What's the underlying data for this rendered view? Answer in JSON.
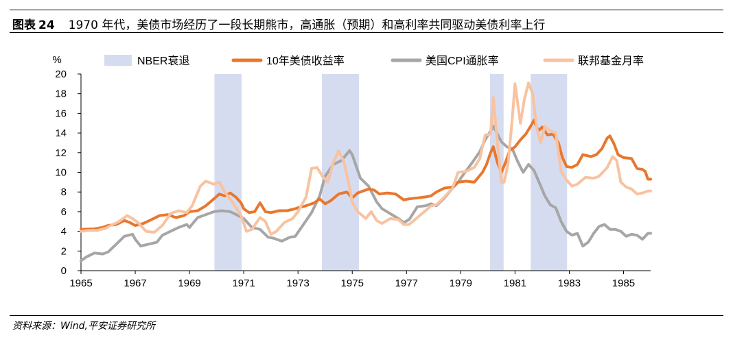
{
  "header": {
    "figure_label": "图表",
    "figure_number": "24",
    "title": "1970 年代，美债市场经历了一段长期熊市，高通胀（预期）和高利率共同驱动美债利率上行"
  },
  "footer": {
    "source": "资料来源：Wind,平安证券研究所"
  },
  "colors": {
    "recession": "#d6dcf0",
    "treasury": "#e8772e",
    "cpi": "#a6a6a6",
    "fed_funds": "#f7c3a0"
  },
  "chart_data": {
    "type": "line",
    "title": "",
    "ylabel": "%",
    "xlabel": "",
    "xlim": [
      1965,
      1986.0
    ],
    "ylim": [
      0,
      20
    ],
    "yticks": [
      0,
      2,
      4,
      6,
      8,
      10,
      12,
      14,
      16,
      18,
      20
    ],
    "xticks": [
      1965,
      1967,
      1969,
      1971,
      1973,
      1975,
      1977,
      1979,
      1981,
      1983,
      1985
    ],
    "legend_position": "top",
    "recessions": {
      "name": "NBER衰退",
      "periods": [
        [
          1969.92,
          1970.92
        ],
        [
          1973.88,
          1975.25
        ],
        [
          1980.08,
          1980.58
        ],
        [
          1981.58,
          1982.92
        ]
      ]
    },
    "series": [
      {
        "name": "10年美债收益率",
        "key": "treasury",
        "width": 4,
        "points": [
          [
            1965.0,
            4.2
          ],
          [
            1965.5,
            4.25
          ],
          [
            1965.8,
            4.4
          ],
          [
            1966.0,
            4.6
          ],
          [
            1966.3,
            4.7
          ],
          [
            1966.6,
            5.1
          ],
          [
            1966.8,
            4.9
          ],
          [
            1967.0,
            4.6
          ],
          [
            1967.3,
            4.8
          ],
          [
            1967.6,
            5.2
          ],
          [
            1967.9,
            5.6
          ],
          [
            1968.2,
            5.7
          ],
          [
            1968.5,
            5.4
          ],
          [
            1968.8,
            5.6
          ],
          [
            1969.0,
            6.0
          ],
          [
            1969.3,
            6.1
          ],
          [
            1969.6,
            6.6
          ],
          [
            1969.9,
            7.3
          ],
          [
            1970.1,
            7.8
          ],
          [
            1970.3,
            7.6
          ],
          [
            1970.5,
            7.9
          ],
          [
            1970.7,
            7.5
          ],
          [
            1970.9,
            6.9
          ],
          [
            1971.0,
            6.3
          ],
          [
            1971.2,
            5.9
          ],
          [
            1971.4,
            6.0
          ],
          [
            1971.6,
            6.9
          ],
          [
            1971.8,
            6.0
          ],
          [
            1972.0,
            5.9
          ],
          [
            1972.3,
            6.1
          ],
          [
            1972.6,
            6.1
          ],
          [
            1972.9,
            6.3
          ],
          [
            1973.0,
            6.4
          ],
          [
            1973.3,
            6.6
          ],
          [
            1973.6,
            6.9
          ],
          [
            1973.8,
            7.3
          ],
          [
            1974.0,
            6.8
          ],
          [
            1974.2,
            7.1
          ],
          [
            1974.5,
            7.8
          ],
          [
            1974.8,
            8.0
          ],
          [
            1975.0,
            7.4
          ],
          [
            1975.2,
            7.9
          ],
          [
            1975.4,
            8.1
          ],
          [
            1975.6,
            8.3
          ],
          [
            1975.8,
            8.2
          ],
          [
            1976.0,
            7.8
          ],
          [
            1976.3,
            7.9
          ],
          [
            1976.6,
            7.8
          ],
          [
            1976.9,
            7.2
          ],
          [
            1977.1,
            7.3
          ],
          [
            1977.4,
            7.4
          ],
          [
            1977.7,
            7.5
          ],
          [
            1977.9,
            7.6
          ],
          [
            1978.1,
            8.0
          ],
          [
            1978.4,
            8.4
          ],
          [
            1978.7,
            8.5
          ],
          [
            1978.9,
            9.0
          ],
          [
            1979.2,
            9.1
          ],
          [
            1979.5,
            9.0
          ],
          [
            1979.8,
            10.0
          ],
          [
            1979.95,
            10.8
          ],
          [
            1980.1,
            12.0
          ],
          [
            1980.2,
            12.6
          ],
          [
            1980.35,
            11.0
          ],
          [
            1980.5,
            10.0
          ],
          [
            1980.65,
            11.0
          ],
          [
            1980.8,
            12.2
          ],
          [
            1981.0,
            12.6
          ],
          [
            1981.2,
            13.3
          ],
          [
            1981.4,
            13.9
          ],
          [
            1981.6,
            14.8
          ],
          [
            1981.7,
            15.3
          ],
          [
            1981.85,
            14.2
          ],
          [
            1982.0,
            14.6
          ],
          [
            1982.2,
            13.8
          ],
          [
            1982.4,
            13.9
          ],
          [
            1982.6,
            13.0
          ],
          [
            1982.75,
            11.5
          ],
          [
            1982.9,
            10.6
          ],
          [
            1983.1,
            10.5
          ],
          [
            1983.3,
            10.8
          ],
          [
            1983.5,
            11.8
          ],
          [
            1983.8,
            11.6
          ],
          [
            1984.0,
            11.8
          ],
          [
            1984.2,
            12.4
          ],
          [
            1984.4,
            13.5
          ],
          [
            1984.5,
            13.7
          ],
          [
            1984.65,
            12.9
          ],
          [
            1984.8,
            11.8
          ],
          [
            1985.0,
            11.5
          ],
          [
            1985.3,
            11.4
          ],
          [
            1985.5,
            10.4
          ],
          [
            1985.7,
            10.3
          ],
          [
            1985.8,
            10.1
          ],
          [
            1985.9,
            9.3
          ],
          [
            1986.0,
            9.3
          ]
        ]
      },
      {
        "name": "美国CPI通胀率",
        "key": "cpi",
        "width": 4,
        "points": [
          [
            1965.0,
            1.0
          ],
          [
            1965.2,
            1.4
          ],
          [
            1965.5,
            1.8
          ],
          [
            1965.8,
            1.7
          ],
          [
            1966.0,
            1.9
          ],
          [
            1966.3,
            2.7
          ],
          [
            1966.6,
            3.5
          ],
          [
            1966.9,
            3.7
          ],
          [
            1967.0,
            3.2
          ],
          [
            1967.2,
            2.5
          ],
          [
            1967.5,
            2.7
          ],
          [
            1967.8,
            2.9
          ],
          [
            1968.0,
            3.6
          ],
          [
            1968.3,
            4.0
          ],
          [
            1968.6,
            4.4
          ],
          [
            1968.9,
            4.7
          ],
          [
            1969.0,
            4.4
          ],
          [
            1969.3,
            5.4
          ],
          [
            1969.6,
            5.7
          ],
          [
            1969.9,
            6.0
          ],
          [
            1970.2,
            6.1
          ],
          [
            1970.5,
            6.0
          ],
          [
            1970.8,
            5.6
          ],
          [
            1971.0,
            5.3
          ],
          [
            1971.3,
            4.4
          ],
          [
            1971.6,
            4.2
          ],
          [
            1971.9,
            3.4
          ],
          [
            1972.1,
            3.3
          ],
          [
            1972.4,
            3.0
          ],
          [
            1972.7,
            3.4
          ],
          [
            1972.9,
            3.5
          ],
          [
            1973.2,
            4.7
          ],
          [
            1973.5,
            5.9
          ],
          [
            1973.8,
            7.6
          ],
          [
            1974.0,
            9.6
          ],
          [
            1974.3,
            10.8
          ],
          [
            1974.6,
            11.2
          ],
          [
            1974.9,
            12.2
          ],
          [
            1975.0,
            11.8
          ],
          [
            1975.3,
            9.4
          ],
          [
            1975.6,
            8.6
          ],
          [
            1975.9,
            7.0
          ],
          [
            1976.1,
            6.3
          ],
          [
            1976.4,
            5.8
          ],
          [
            1976.7,
            5.3
          ],
          [
            1976.9,
            4.9
          ],
          [
            1977.1,
            5.2
          ],
          [
            1977.4,
            6.5
          ],
          [
            1977.7,
            6.6
          ],
          [
            1977.9,
            6.8
          ],
          [
            1978.1,
            6.6
          ],
          [
            1978.4,
            7.4
          ],
          [
            1978.7,
            8.4
          ],
          [
            1978.9,
            9.0
          ],
          [
            1979.1,
            9.8
          ],
          [
            1979.4,
            10.9
          ],
          [
            1979.7,
            12.1
          ],
          [
            1979.9,
            13.3
          ],
          [
            1980.1,
            14.2
          ],
          [
            1980.2,
            14.7
          ],
          [
            1980.5,
            13.1
          ],
          [
            1980.7,
            12.6
          ],
          [
            1980.9,
            12.4
          ],
          [
            1981.1,
            11.1
          ],
          [
            1981.3,
            10.0
          ],
          [
            1981.5,
            10.8
          ],
          [
            1981.7,
            10.2
          ],
          [
            1981.9,
            8.9
          ],
          [
            1982.1,
            7.6
          ],
          [
            1982.3,
            6.7
          ],
          [
            1982.5,
            6.4
          ],
          [
            1982.7,
            5.0
          ],
          [
            1982.9,
            4.0
          ],
          [
            1983.1,
            3.6
          ],
          [
            1983.3,
            3.8
          ],
          [
            1983.5,
            2.5
          ],
          [
            1983.7,
            2.9
          ],
          [
            1983.9,
            3.8
          ],
          [
            1984.1,
            4.5
          ],
          [
            1984.3,
            4.7
          ],
          [
            1984.5,
            4.2
          ],
          [
            1984.7,
            4.2
          ],
          [
            1984.9,
            4.0
          ],
          [
            1985.1,
            3.5
          ],
          [
            1985.3,
            3.7
          ],
          [
            1985.5,
            3.6
          ],
          [
            1985.7,
            3.2
          ],
          [
            1985.9,
            3.8
          ],
          [
            1986.0,
            3.8
          ]
        ]
      },
      {
        "name": "联邦基金月率",
        "key": "fed_funds",
        "width": 4,
        "points": [
          [
            1965.0,
            4.0
          ],
          [
            1965.3,
            4.1
          ],
          [
            1965.6,
            4.1
          ],
          [
            1965.9,
            4.3
          ],
          [
            1966.1,
            4.6
          ],
          [
            1966.4,
            5.0
          ],
          [
            1966.7,
            5.6
          ],
          [
            1966.9,
            5.3
          ],
          [
            1967.1,
            4.9
          ],
          [
            1967.4,
            4.0
          ],
          [
            1967.7,
            3.9
          ],
          [
            1968.0,
            4.6
          ],
          [
            1968.3,
            5.8
          ],
          [
            1968.6,
            6.1
          ],
          [
            1968.9,
            5.9
          ],
          [
            1969.1,
            6.6
          ],
          [
            1969.4,
            8.6
          ],
          [
            1969.6,
            9.1
          ],
          [
            1969.9,
            8.8
          ],
          [
            1970.1,
            9.0
          ],
          [
            1970.3,
            8.0
          ],
          [
            1970.6,
            6.9
          ],
          [
            1970.9,
            5.6
          ],
          [
            1971.1,
            4.0
          ],
          [
            1971.3,
            4.2
          ],
          [
            1971.6,
            5.4
          ],
          [
            1971.8,
            5.0
          ],
          [
            1972.0,
            3.7
          ],
          [
            1972.2,
            4.0
          ],
          [
            1972.5,
            4.9
          ],
          [
            1972.8,
            5.3
          ],
          [
            1973.0,
            6.0
          ],
          [
            1973.3,
            7.5
          ],
          [
            1973.5,
            10.4
          ],
          [
            1973.7,
            10.5
          ],
          [
            1973.9,
            9.6
          ],
          [
            1974.1,
            9.0
          ],
          [
            1974.3,
            11.0
          ],
          [
            1974.5,
            12.2
          ],
          [
            1974.7,
            11.0
          ],
          [
            1974.9,
            8.5
          ],
          [
            1975.0,
            7.0
          ],
          [
            1975.2,
            6.0
          ],
          [
            1975.5,
            5.3
          ],
          [
            1975.7,
            6.0
          ],
          [
            1975.9,
            5.1
          ],
          [
            1976.1,
            4.8
          ],
          [
            1976.4,
            5.3
          ],
          [
            1976.7,
            5.2
          ],
          [
            1976.9,
            4.7
          ],
          [
            1977.1,
            4.7
          ],
          [
            1977.4,
            5.4
          ],
          [
            1977.7,
            6.1
          ],
          [
            1977.9,
            6.6
          ],
          [
            1978.1,
            6.7
          ],
          [
            1978.4,
            7.5
          ],
          [
            1978.7,
            8.4
          ],
          [
            1978.9,
            10.0
          ],
          [
            1979.2,
            10.1
          ],
          [
            1979.5,
            10.5
          ],
          [
            1979.7,
            11.4
          ],
          [
            1979.9,
            13.8
          ],
          [
            1980.1,
            13.9
          ],
          [
            1980.2,
            17.6
          ],
          [
            1980.35,
            13.0
          ],
          [
            1980.5,
            9.0
          ],
          [
            1980.6,
            9.0
          ],
          [
            1980.75,
            11.0
          ],
          [
            1980.9,
            15.5
          ],
          [
            1981.0,
            19.0
          ],
          [
            1981.2,
            15.0
          ],
          [
            1981.35,
            17.5
          ],
          [
            1981.5,
            19.1
          ],
          [
            1981.65,
            18.0
          ],
          [
            1981.8,
            14.5
          ],
          [
            1981.95,
            13.0
          ],
          [
            1982.1,
            14.7
          ],
          [
            1982.3,
            14.2
          ],
          [
            1982.5,
            14.0
          ],
          [
            1982.7,
            10.1
          ],
          [
            1982.9,
            9.2
          ],
          [
            1983.1,
            8.6
          ],
          [
            1983.3,
            8.8
          ],
          [
            1983.6,
            9.5
          ],
          [
            1983.9,
            9.4
          ],
          [
            1984.1,
            9.6
          ],
          [
            1984.4,
            10.5
          ],
          [
            1984.6,
            11.6
          ],
          [
            1984.75,
            11.2
          ],
          [
            1984.9,
            9.0
          ],
          [
            1985.1,
            8.5
          ],
          [
            1985.3,
            8.3
          ],
          [
            1985.5,
            7.8
          ],
          [
            1985.7,
            7.9
          ],
          [
            1985.9,
            8.1
          ],
          [
            1986.0,
            8.1
          ]
        ]
      }
    ]
  }
}
